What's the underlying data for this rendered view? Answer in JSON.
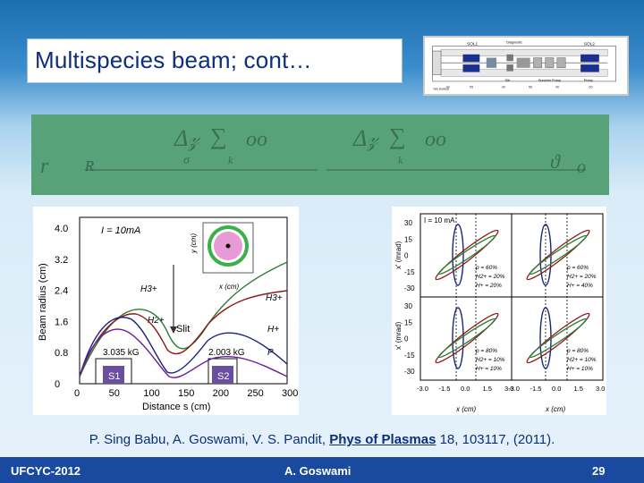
{
  "slide": {
    "title": "Multispecies beam; cont…",
    "citation": {
      "authors": "P. Sing Babu, A. Goswami, V. S. Pandit, ",
      "journal": "Phys of Plasmas",
      "rest": " 18, 103117, (2011)."
    },
    "footer": {
      "left": "UFCYC-2012",
      "center": "A. Goswami",
      "page": "29"
    }
  },
  "schematic": {
    "labels": {
      "sol1": "SOL1",
      "sol2": "SOL2",
      "diagnostic": "Diagnostic",
      "slit": "Slit",
      "buncher": "Buncher Pump",
      "pump": "Pump",
      "ion_source": "Ion source"
    },
    "dims": [
      "40",
      "55",
      "40",
      "55",
      "40",
      "50"
    ]
  },
  "left_plot": {
    "ylabel": "Beam radius (cm)",
    "xlabel": "Distance s (cm)",
    "yticks": [
      "4.0",
      "3.2",
      "2.4",
      "1.6",
      "0.8",
      "0"
    ],
    "xticks": [
      "0",
      "50",
      "100",
      "150",
      "200",
      "250",
      "300"
    ],
    "current": "I = 10mA",
    "sol1_field": "3.035 kG",
    "sol2_field": "2.003 kG",
    "s1": "S1",
    "s2": "S2",
    "slit": "Slit",
    "species": {
      "h3": "H3+",
      "h2": "H2+",
      "h1": "H+",
      "p": "P"
    },
    "inset": {
      "xlabel": "x (cm)",
      "ylabel": "y (cm)",
      "ticks": [
        "2",
        "0",
        "-2"
      ]
    }
  },
  "right_plot": {
    "current": "I = 10 mA",
    "ylabel": "x' (mrad)",
    "xlabel": "x (cm)",
    "yticks": [
      "30",
      "15",
      "0",
      "-15",
      "-30"
    ],
    "xticks_left": [
      "-3.0",
      "-1.5",
      "0.0",
      "1.5",
      "3.0"
    ],
    "xticks_right": [
      "-3.0",
      "-1.5",
      "0.0",
      "1.5",
      "3.0"
    ],
    "panels": [
      {
        "p": "p = 60%",
        "h2": "H2+ = 20%",
        "h1": "H+ = 20%"
      },
      {
        "p": "p = 60%",
        "h2": "H2+ = 20%",
        "h1": "H+ = 40%"
      },
      {
        "p": "p = 80%",
        "h2": "H2+ = 10%",
        "h1": "H+ = 10%"
      },
      {
        "p": "p = 80%",
        "h2": "H2+ = 10%",
        "h1": "H+ = 10%"
      }
    ]
  },
  "colors": {
    "title": "#0c2f7a",
    "footer_bg": "#1a4aa0",
    "equation_bg": "#58a27a"
  }
}
